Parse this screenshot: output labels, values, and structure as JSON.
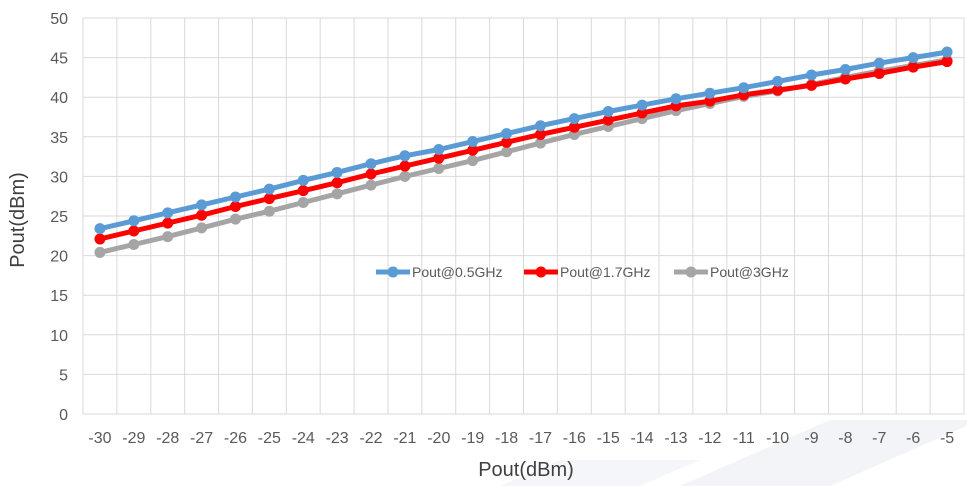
{
  "chart_data": {
    "type": "line",
    "xlabel": "Pout(dBm)",
    "ylabel": "Pout(dBm)",
    "xlim": [
      -30,
      -5
    ],
    "ylim": [
      0,
      50
    ],
    "x_ticks": [
      "-30",
      "-29",
      "-28",
      "-27",
      "-26",
      "-25",
      "-24",
      "-23",
      "-22",
      "-21",
      "-20",
      "-19",
      "-18",
      "-17",
      "-16",
      "-15",
      "-14",
      "-13",
      "-12",
      "-11",
      "-10",
      "-9",
      "-8",
      "-7",
      "-6",
      "-5"
    ],
    "y_ticks": [
      "0",
      "5",
      "10",
      "15",
      "20",
      "25",
      "30",
      "35",
      "40",
      "45",
      "50"
    ],
    "grid": true,
    "legend_position": "center",
    "x": [
      -30,
      -29,
      -28,
      -27,
      -26,
      -25,
      -24,
      -23,
      -22,
      -21,
      -20,
      -19,
      -18,
      -17,
      -16,
      -15,
      -14,
      -13,
      -12,
      -11,
      -10,
      -9,
      -8,
      -7,
      -6,
      -5
    ],
    "series": [
      {
        "name": "Pout@0.5GHz",
        "color": "#5b9bd5",
        "values": [
          23.4,
          24.4,
          25.4,
          26.4,
          27.4,
          28.4,
          29.5,
          30.5,
          31.6,
          32.6,
          33.4,
          34.4,
          35.4,
          36.4,
          37.3,
          38.2,
          39.0,
          39.8,
          40.5,
          41.2,
          42.0,
          42.8,
          43.5,
          44.3,
          45.0,
          45.7
        ]
      },
      {
        "name": "Pout@1.7GHz",
        "color": "#ff0000",
        "values": [
          22.1,
          23.1,
          24.1,
          25.1,
          26.2,
          27.2,
          28.2,
          29.2,
          30.3,
          31.3,
          32.3,
          33.3,
          34.3,
          35.3,
          36.2,
          37.1,
          38.0,
          38.9,
          39.5,
          40.3,
          40.9,
          41.5,
          42.3,
          43.0,
          43.8,
          44.5
        ]
      },
      {
        "name": "Pout@3GHz",
        "color": "#a5a5a5",
        "values": [
          20.4,
          21.4,
          22.4,
          23.5,
          24.6,
          25.6,
          26.7,
          27.8,
          28.9,
          30.0,
          31.0,
          32.0,
          33.1,
          34.2,
          35.3,
          36.3,
          37.3,
          38.3,
          39.2,
          40.1,
          40.8,
          41.6,
          42.5,
          43.3,
          44.0,
          44.7
        ]
      }
    ]
  }
}
